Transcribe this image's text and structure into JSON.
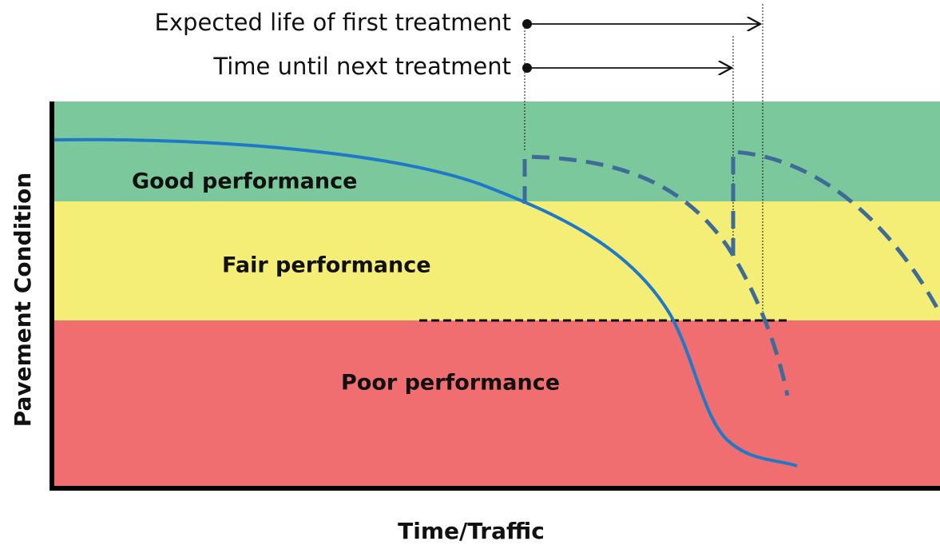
{
  "annotations": {
    "expected_life": "Expected life of first treatment",
    "time_until_next": "Time until next treatment"
  },
  "bands": {
    "good": "Good performance",
    "fair": "Fair performance",
    "poor": "Poor performance"
  },
  "axes": {
    "y_label": "Pavement Condition",
    "x_label": "Time/Traffic"
  }
}
